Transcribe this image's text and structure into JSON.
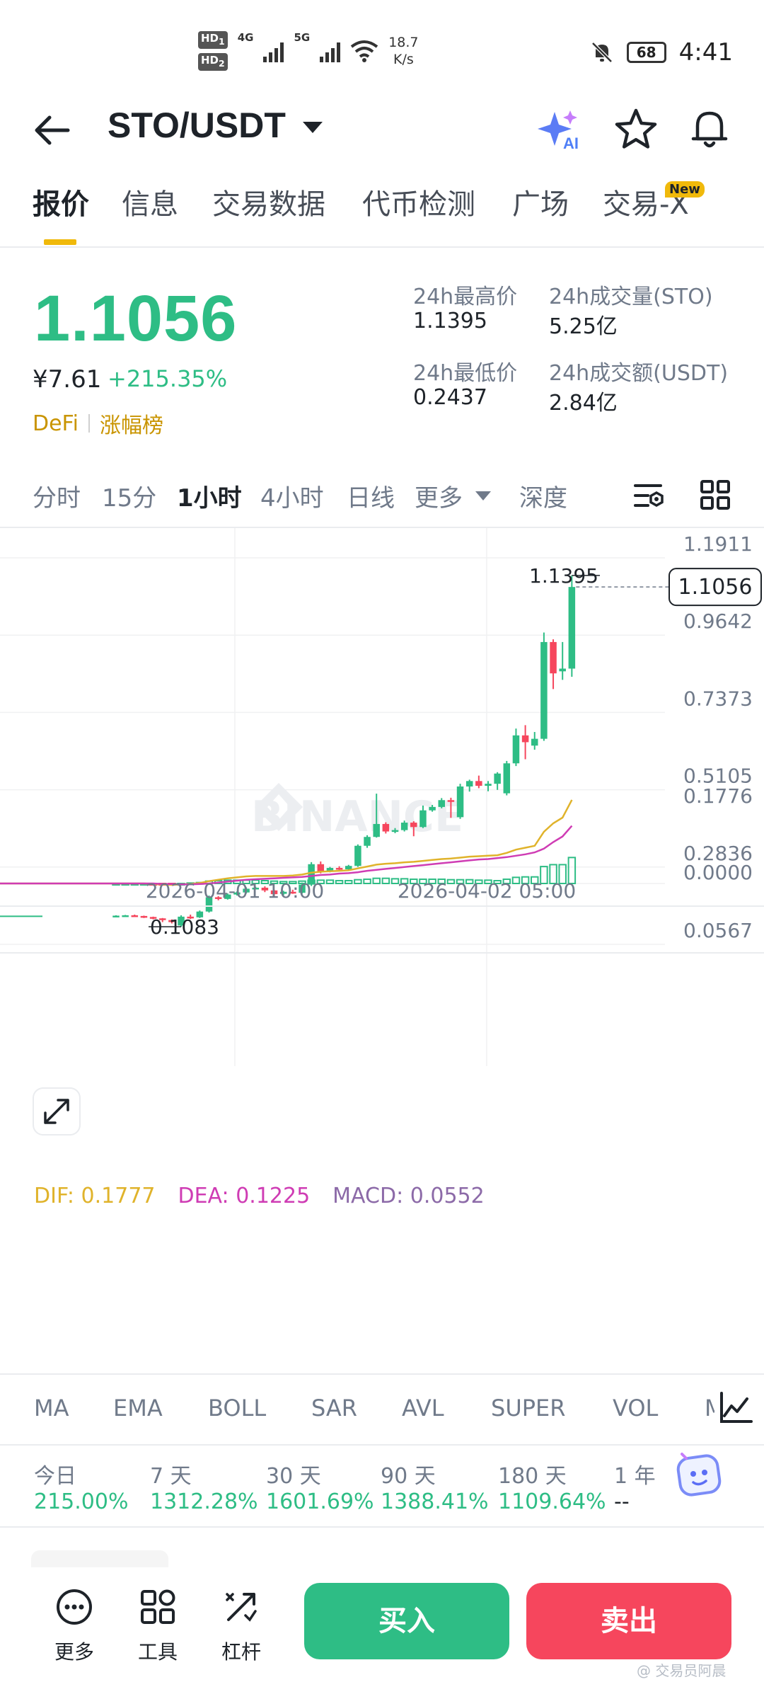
{
  "status_bar": {
    "hd1": "HD",
    "hd1_sub": "1",
    "hd2": "HD",
    "hd2_sub": "2",
    "net_4g": "4G",
    "net_5g": "5G",
    "speed_value": "18.7",
    "speed_unit": "K/s",
    "battery": "68",
    "time": "4:41"
  },
  "header": {
    "pair": "STO/USDT",
    "ai_label": "AI"
  },
  "tabs": [
    {
      "label": "报价",
      "active": true
    },
    {
      "label": "信息",
      "active": false
    },
    {
      "label": "交易数据",
      "active": false
    },
    {
      "label": "代币检测",
      "active": false
    },
    {
      "label": "广场",
      "active": false
    },
    {
      "label": "交易-X",
      "active": false
    }
  ],
  "new_badge": "New",
  "price": {
    "last": "1.1056",
    "cny": "¥7.61",
    "change": "+215.35%",
    "tag1": "DeFi",
    "tag2": "涨幅榜"
  },
  "stats": {
    "high_label": "24h最高价",
    "high_value": "1.1395",
    "volume_label": "24h成交量(STO)",
    "volume_value": "5.25亿",
    "low_label": "24h最低价",
    "low_value": "0.2437",
    "turnover_label": "24h成交额(USDT)",
    "turnover_value": "2.84亿"
  },
  "intervals": [
    {
      "label": "分时",
      "active": false
    },
    {
      "label": "15分",
      "active": false
    },
    {
      "label": "1小时",
      "active": true
    },
    {
      "label": "4小时",
      "active": false
    },
    {
      "label": "日线",
      "active": false
    },
    {
      "label": "更多",
      "active": false
    },
    {
      "label": "深度",
      "active": false
    }
  ],
  "chart_data": {
    "type": "candlestick",
    "watermark": "BINANCE",
    "y_ticks": [
      "1.1911",
      "0.9642",
      "0.7373",
      "0.5105",
      "0.2836",
      "0.0567"
    ],
    "y_tick_values": [
      1.1911,
      0.9642,
      0.7373,
      0.5105,
      0.2836,
      0.0567
    ],
    "ylim": [
      0.0567,
      1.1911
    ],
    "x_ticks": [
      "2026-04-01 10:00",
      "2026-04-02 05:00"
    ],
    "last_price_label": "1.1056",
    "high_marker": "1.1395",
    "low_marker": "0.1083",
    "candles": [
      {
        "o": 0.139,
        "h": 0.142,
        "c": 0.141,
        "l": 0.137
      },
      {
        "o": 0.141,
        "h": 0.143,
        "c": 0.142,
        "l": 0.139
      },
      {
        "o": 0.142,
        "h": 0.144,
        "c": 0.14,
        "l": 0.138
      },
      {
        "o": 0.14,
        "h": 0.141,
        "c": 0.137,
        "l": 0.134
      },
      {
        "o": 0.137,
        "h": 0.138,
        "c": 0.133,
        "l": 0.13
      },
      {
        "o": 0.133,
        "h": 0.134,
        "c": 0.128,
        "l": 0.122
      },
      {
        "o": 0.128,
        "h": 0.13,
        "c": 0.122,
        "l": 0.118
      },
      {
        "o": 0.112,
        "h": 0.142,
        "c": 0.138,
        "l": 0.108
      },
      {
        "o": 0.138,
        "h": 0.144,
        "c": 0.135,
        "l": 0.131
      },
      {
        "o": 0.136,
        "h": 0.156,
        "c": 0.153,
        "l": 0.134
      },
      {
        "o": 0.153,
        "h": 0.2,
        "c": 0.195,
        "l": 0.15
      },
      {
        "o": 0.195,
        "h": 0.198,
        "c": 0.19,
        "l": 0.186
      },
      {
        "o": 0.19,
        "h": 0.206,
        "c": 0.203,
        "l": 0.188
      },
      {
        "o": 0.203,
        "h": 0.212,
        "c": 0.209,
        "l": 0.2
      },
      {
        "o": 0.209,
        "h": 0.224,
        "c": 0.22,
        "l": 0.206
      },
      {
        "o": 0.22,
        "h": 0.226,
        "c": 0.223,
        "l": 0.218
      },
      {
        "o": 0.223,
        "h": 0.227,
        "c": 0.215,
        "l": 0.21
      },
      {
        "o": 0.215,
        "h": 0.217,
        "c": 0.204,
        "l": 0.198
      },
      {
        "o": 0.205,
        "h": 0.214,
        "c": 0.211,
        "l": 0.201
      },
      {
        "o": 0.211,
        "h": 0.217,
        "c": 0.208,
        "l": 0.205
      },
      {
        "o": 0.208,
        "h": 0.238,
        "c": 0.232,
        "l": 0.206
      },
      {
        "o": 0.232,
        "h": 0.298,
        "c": 0.292,
        "l": 0.228
      },
      {
        "o": 0.292,
        "h": 0.3,
        "c": 0.27,
        "l": 0.265
      },
      {
        "o": 0.27,
        "h": 0.284,
        "c": 0.281,
        "l": 0.268
      },
      {
        "o": 0.281,
        "h": 0.286,
        "c": 0.277,
        "l": 0.275
      },
      {
        "o": 0.277,
        "h": 0.29,
        "c": 0.287,
        "l": 0.274
      },
      {
        "o": 0.287,
        "h": 0.35,
        "c": 0.346,
        "l": 0.284
      },
      {
        "o": 0.346,
        "h": 0.377,
        "c": 0.372,
        "l": 0.34
      },
      {
        "o": 0.372,
        "h": 0.499,
        "c": 0.41,
        "l": 0.37
      },
      {
        "o": 0.41,
        "h": 0.415,
        "c": 0.388,
        "l": 0.382
      },
      {
        "o": 0.388,
        "h": 0.398,
        "c": 0.392,
        "l": 0.383
      },
      {
        "o": 0.392,
        "h": 0.42,
        "c": 0.414,
        "l": 0.388
      },
      {
        "o": 0.414,
        "h": 0.418,
        "c": 0.401,
        "l": 0.374
      },
      {
        "o": 0.401,
        "h": 0.464,
        "c": 0.45,
        "l": 0.398
      },
      {
        "o": 0.45,
        "h": 0.466,
        "c": 0.46,
        "l": 0.446
      },
      {
        "o": 0.46,
        "h": 0.486,
        "c": 0.48,
        "l": 0.456
      },
      {
        "o": 0.48,
        "h": 0.487,
        "c": 0.477,
        "l": 0.428
      },
      {
        "o": 0.43,
        "h": 0.528,
        "c": 0.52,
        "l": 0.425
      },
      {
        "o": 0.52,
        "h": 0.54,
        "c": 0.536,
        "l": 0.505
      },
      {
        "o": 0.536,
        "h": 0.552,
        "c": 0.522,
        "l": 0.515
      },
      {
        "o": 0.522,
        "h": 0.536,
        "c": 0.528,
        "l": 0.506
      },
      {
        "o": 0.528,
        "h": 0.562,
        "c": 0.558,
        "l": 0.51
      },
      {
        "o": 0.5,
        "h": 0.595,
        "c": 0.588,
        "l": 0.494
      },
      {
        "o": 0.588,
        "h": 0.69,
        "c": 0.67,
        "l": 0.58
      },
      {
        "o": 0.67,
        "h": 0.7,
        "c": 0.65,
        "l": 0.6
      },
      {
        "o": 0.64,
        "h": 0.68,
        "c": 0.66,
        "l": 0.628
      },
      {
        "o": 0.66,
        "h": 0.972,
        "c": 0.944,
        "l": 0.654
      },
      {
        "o": 0.944,
        "h": 0.952,
        "c": 0.852,
        "l": 0.806
      },
      {
        "o": 0.858,
        "h": 0.944,
        "c": 0.866,
        "l": 0.833
      },
      {
        "o": 0.866,
        "h": 1.1395,
        "c": 1.1056,
        "l": 0.842
      }
    ],
    "macd": {
      "dif_label": "DIF: 0.1777",
      "dea_label": "DEA: 0.1225",
      "macd_label": "MACD: 0.0552",
      "dif_color": "#e0b32b",
      "dea_color": "#cf3cb4",
      "macd_color": "#8c6aa8",
      "y_ticks": [
        "0.1776",
        "0.0000"
      ],
      "ylim": [
        -0.01,
        0.1776
      ],
      "dif": [
        0.0,
        0.0,
        0.0,
        0.0,
        -0.001,
        -0.002,
        -0.003,
        -0.002,
        -0.001,
        0.001,
        0.005,
        0.008,
        0.011,
        0.013,
        0.015,
        0.016,
        0.016,
        0.016,
        0.016,
        0.017,
        0.019,
        0.023,
        0.025,
        0.026,
        0.027,
        0.028,
        0.032,
        0.036,
        0.04,
        0.042,
        0.043,
        0.045,
        0.046,
        0.048,
        0.05,
        0.052,
        0.053,
        0.055,
        0.057,
        0.058,
        0.059,
        0.06,
        0.065,
        0.072,
        0.076,
        0.08,
        0.11,
        0.128,
        0.14,
        0.1777
      ],
      "dea": [
        0.0,
        0.0,
        0.0,
        0.0,
        0.0,
        -0.001,
        -0.001,
        -0.002,
        -0.002,
        -0.001,
        0.0,
        0.002,
        0.004,
        0.006,
        0.008,
        0.009,
        0.01,
        0.011,
        0.012,
        0.013,
        0.014,
        0.016,
        0.018,
        0.019,
        0.021,
        0.022,
        0.024,
        0.027,
        0.029,
        0.031,
        0.033,
        0.035,
        0.037,
        0.039,
        0.041,
        0.043,
        0.045,
        0.047,
        0.049,
        0.051,
        0.052,
        0.054,
        0.056,
        0.059,
        0.062,
        0.066,
        0.074,
        0.088,
        0.1,
        0.1225
      ],
      "hist": [
        0.0,
        0.0,
        0.0,
        0.0,
        -0.001,
        -0.001,
        -0.002,
        0.0,
        0.001,
        0.002,
        0.005,
        0.006,
        0.007,
        0.007,
        0.007,
        0.007,
        0.006,
        0.005,
        0.004,
        0.004,
        0.005,
        0.007,
        0.007,
        0.007,
        0.006,
        0.006,
        0.008,
        0.009,
        0.011,
        0.011,
        0.01,
        0.01,
        0.009,
        0.009,
        0.009,
        0.009,
        0.008,
        0.008,
        0.008,
        0.007,
        0.007,
        0.006,
        0.009,
        0.013,
        0.014,
        0.014,
        0.036,
        0.04,
        0.04,
        0.0552
      ]
    }
  },
  "indicator_tabs": [
    "MA",
    "EMA",
    "BOLL",
    "SAR",
    "AVL",
    "SUPER",
    "VOL",
    "M"
  ],
  "performance": [
    {
      "label": "今日",
      "value": "215.00%"
    },
    {
      "label": "7 天",
      "value": "1312.28%"
    },
    {
      "label": "30 天",
      "value": "1601.69%"
    },
    {
      "label": "90 天",
      "value": "1388.41%"
    },
    {
      "label": "180 天",
      "value": "1109.64%"
    },
    {
      "label": "1 年",
      "value": "--"
    }
  ],
  "bottom_bar": {
    "more": "更多",
    "tools": "工具",
    "leverage": "杠杆",
    "buy": "买入",
    "sell": "卖出",
    "watermark": "@ 交易员阿晨"
  },
  "colors": {
    "up": "#2ebd85",
    "down": "#f6465d",
    "accent": "#f0b90b"
  }
}
